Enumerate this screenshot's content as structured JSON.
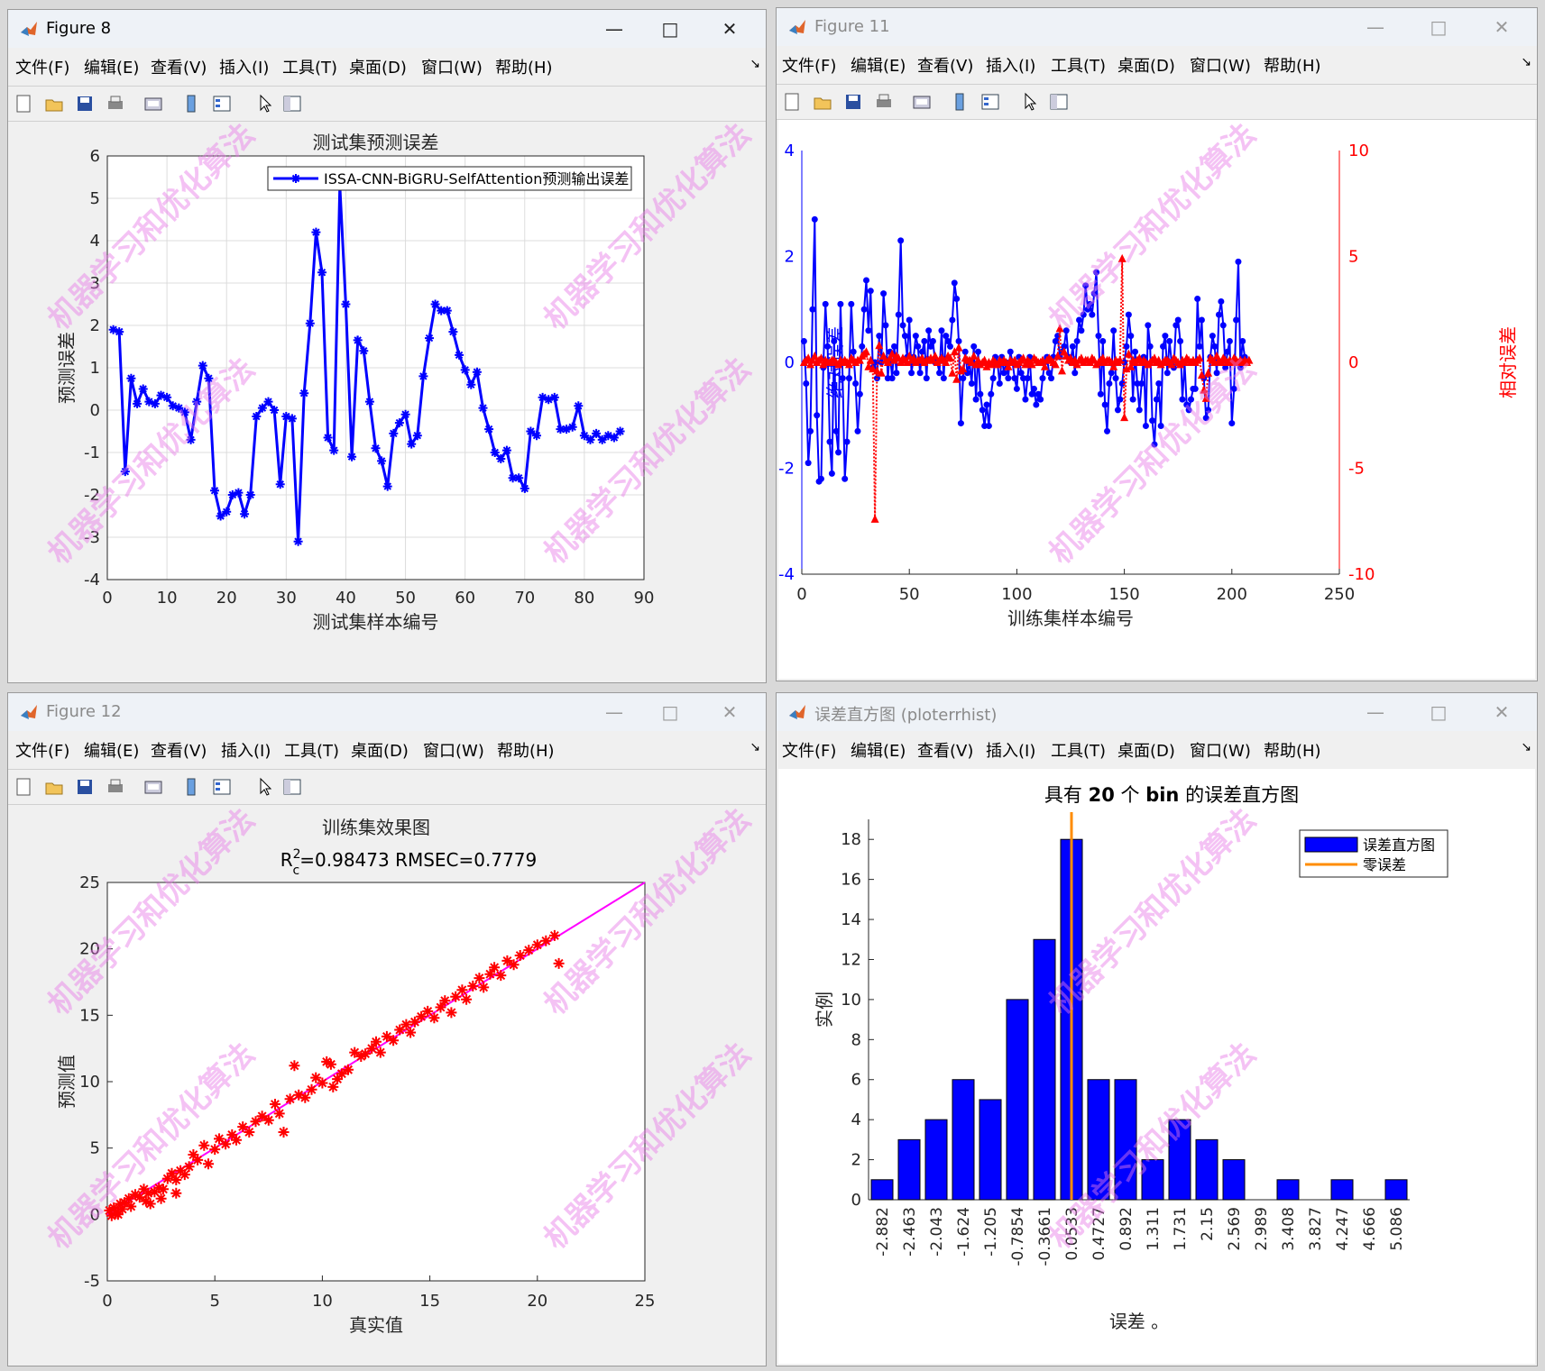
{
  "menus": [
    "文件(F)",
    "编辑(E)",
    "查看(V)",
    "插入(I)",
    "工具(T)",
    "桌面(D)",
    "窗口(W)",
    "帮助(H)"
  ],
  "watermark": "机器学习和优化算法",
  "windows": {
    "fig8": {
      "title": "Figure 8",
      "plot_title": "测试集预测误差",
      "xlabel": "测试集样本编号",
      "ylabel": "预测误差",
      "legend": "ISSA-CNN-BiGRU-SelfAttention预测输出误差",
      "xticks": [
        "0",
        "10",
        "20",
        "30",
        "40",
        "50",
        "60",
        "70",
        "80",
        "90"
      ],
      "yticks": [
        "-4",
        "-3",
        "-2",
        "-1",
        "0",
        "1",
        "2",
        "3",
        "4",
        "5",
        "6"
      ]
    },
    "fig11": {
      "title": "Figure 11",
      "xlabel": "训练集样本编号",
      "ylabel_left": "绝对误差",
      "ylabel_right": "相对误差",
      "xticks": [
        "0",
        "50",
        "100",
        "150",
        "200",
        "250"
      ],
      "yticks_left": [
        "-4",
        "-2",
        "0",
        "2",
        "4"
      ],
      "yticks_right": [
        "-10",
        "-5",
        "0",
        "5",
        "10"
      ]
    },
    "fig12": {
      "title": "Figure 12",
      "plot_title": "训练集效果图",
      "subtitle_r": "R",
      "subtitle_sup": "2",
      "subtitle_sub": "c",
      "subtitle_rest": "=0.98473  RMSEC=0.7779",
      "xlabel": "真实值",
      "ylabel": "预测值",
      "xticks": [
        "0",
        "5",
        "10",
        "15",
        "20",
        "25"
      ],
      "yticks": [
        "-5",
        "0",
        "5",
        "10",
        "15",
        "20",
        "25"
      ]
    },
    "hist": {
      "title": "误差直方图 (ploterrhist)",
      "plot_title_a": "具有 ",
      "plot_title_b": "20",
      "plot_title_c": " 个 ",
      "plot_title_d": "bin",
      "plot_title_e": " 的误差直方图",
      "xlabel": "误差 。",
      "ylabel": "实例",
      "legend_hist": "误差直方图",
      "legend_zero": "零误差",
      "yticks": [
        "0",
        "2",
        "4",
        "6",
        "8",
        "10",
        "12",
        "14",
        "16",
        "18"
      ]
    }
  },
  "chart_data": [
    {
      "type": "line",
      "title": "测试集预测误差",
      "xlabel": "测试集样本编号",
      "ylabel": "预测误差",
      "xlim": [
        0,
        90
      ],
      "ylim": [
        -4,
        6
      ],
      "grid": true,
      "legend_position": "top-right",
      "series": [
        {
          "name": "ISSA-CNN-BiGRU-SelfAttention预测输出误差",
          "color": "#0000ff",
          "x": [
            1,
            2,
            3,
            4,
            5,
            6,
            7,
            8,
            9,
            10,
            11,
            12,
            13,
            14,
            15,
            16,
            17,
            18,
            19,
            20,
            21,
            22,
            23,
            24,
            25,
            26,
            27,
            28,
            29,
            30,
            31,
            32,
            33,
            34,
            35,
            36,
            37,
            38,
            39,
            40,
            41,
            42,
            43,
            44,
            45,
            46,
            47,
            48,
            49,
            50,
            51,
            52,
            53,
            54,
            55,
            56,
            57,
            58,
            59,
            60,
            61,
            62,
            63,
            64,
            65,
            66,
            67,
            68,
            69,
            70,
            71,
            72,
            73,
            74,
            75,
            76,
            77,
            78,
            79,
            80,
            81,
            82,
            83,
            84,
            85,
            86
          ],
          "y": [
            1.9,
            1.85,
            -1.45,
            0.75,
            0.15,
            0.5,
            0.2,
            0.15,
            0.35,
            0.3,
            0.1,
            0.05,
            -0.05,
            -0.7,
            0.2,
            1.05,
            0.75,
            -1.9,
            -2.5,
            -2.4,
            -2.0,
            -1.95,
            -2.45,
            -2.0,
            -0.15,
            0.05,
            0.2,
            0.0,
            -1.75,
            -0.15,
            -0.2,
            -3.1,
            0.4,
            2.05,
            4.2,
            3.25,
            -0.65,
            -0.95,
            5.3,
            2.5,
            -1.1,
            1.65,
            1.4,
            0.2,
            -0.9,
            -1.2,
            -1.8,
            -0.55,
            -0.3,
            -0.1,
            -0.8,
            -0.6,
            0.8,
            1.7,
            2.5,
            2.35,
            2.35,
            1.85,
            1.3,
            0.95,
            0.6,
            0.9,
            0.05,
            -0.45,
            -1.0,
            -1.15,
            -0.95,
            -1.6,
            -1.6,
            -1.85,
            -0.5,
            -0.6,
            0.3,
            0.25,
            0.3,
            -0.45,
            -0.45,
            -0.4,
            0.1,
            -0.6,
            -0.7,
            -0.55,
            -0.7,
            -0.6,
            -0.65,
            -0.5
          ]
        }
      ]
    },
    {
      "type": "line",
      "xlabel": "训练集样本编号",
      "ylabel_left": "绝对误差",
      "ylabel_right": "相对误差",
      "xlim": [
        0,
        250
      ],
      "ylim_left": [
        -4,
        4
      ],
      "ylim_right": [
        -10,
        10
      ],
      "series": [
        {
          "name": "绝对误差",
          "color": "#0000ff",
          "y": [
            0.4,
            -0.4,
            -1.9,
            -1.3,
            1.0,
            2.7,
            -1.0,
            -2.25,
            -2.2,
            -0.1,
            1.1,
            0.3,
            -1.5,
            -2.1,
            0.4,
            -1.3,
            -1.7,
            1.1,
            -0.3,
            -2.2,
            -1.5,
            -0.3,
            1.1,
            0.2,
            -0.4,
            -1.3,
            -0.6,
            0.3,
            1.0,
            1.55,
            0.6,
            1.35,
            -0.1,
            0.0,
            -0.3,
            0.5,
            0.0,
            1.3,
            0.7,
            -0.3,
            0.2,
            -0.3,
            0.3,
            -0.2,
            0.9,
            2.3,
            0.7,
            0.5,
            0.1,
            0.8,
            -0.2,
            0.1,
            0.5,
            0.3,
            -0.2,
            0.2,
            0.4,
            -0.3,
            0.6,
            0.3,
            0.4,
            0.0,
            0.0,
            -0.2,
            0.6,
            -0.3,
            0.5,
            0.4,
            0.3,
            0.8,
            1.5,
            1.2,
            0.4,
            -1.15,
            -0.3,
            0.2,
            -0.2,
            0.0,
            -0.4,
            0.3,
            -0.7,
            0.2,
            -0.6,
            -0.9,
            -1.2,
            -0.8,
            -1.2,
            -0.6,
            -0.3,
            0.1,
            0.0,
            -0.4,
            0.1,
            -0.2,
            0.0,
            -0.3,
            0.2,
            0.0,
            -0.3,
            -0.5,
            0.1,
            -0.2,
            -0.3,
            -0.7,
            -0.3,
            0.1,
            -0.6,
            -0.5,
            -0.8,
            -0.6,
            -0.7,
            -0.3,
            0.0,
            0.1,
            -0.2,
            -0.3,
            0.1,
            0.4,
            0.5,
            0.1,
            0.2,
            0.3,
            0.6,
            0.1,
            0.0,
            0.3,
            -0.2,
            0.4,
            0.8,
            0.6,
            0.9,
            1.45,
            1.0,
            1.1,
            0.9,
            1.3,
            1.7,
            0.5,
            -0.6,
            0.4,
            -0.8,
            -1.3,
            -0.4,
            -0.2,
            0.6,
            -0.3,
            -0.9,
            -0.7,
            -0.4,
            0.0,
            0.3,
            0.9,
            0.5,
            -0.7,
            0.2,
            -0.4,
            -0.9,
            -0.4,
            0.1,
            -1.2,
            0.7,
            0.3,
            -1.1,
            -1.55,
            -0.7,
            -0.4,
            -1.2,
            0.3,
            0.5,
            -0.2,
            0.4,
            0.0,
            -0.1,
            0.7,
            0.8,
            0.4,
            -0.7,
            0.0,
            -0.8,
            -0.9,
            -0.7,
            -0.5,
            -0.5,
            1.2,
            0.3,
            0.8,
            -0.3,
            -1.05,
            -0.9,
            0.1,
            0.5,
            0.3,
            -0.2,
            0.9,
            1.15,
            0.7,
            -0.1,
            0.2,
            0.4,
            -1.15,
            -0.5,
            0.8,
            1.9,
            -0.1,
            0.4,
            0.1
          ]
        },
        {
          "name": "相对误差",
          "color": "#ff0000",
          "y": [
            0.0,
            0.1,
            0.2,
            -0.1,
            0.1,
            0.3,
            0.0,
            0.1,
            0.2,
            -0.1,
            0.1,
            0.0,
            0.0,
            0.1,
            0.1,
            0.0,
            -0.1,
            0.1,
            0.0,
            0.1,
            0.0,
            -0.1,
            0.2,
            0.1,
            0.0,
            0.1,
            0.1,
            0.3,
            0.4,
            0.5,
            -0.2,
            0.1,
            -0.3,
            -7.4,
            -0.4,
            0.8,
            -0.5,
            0.3,
            0.1,
            0.0,
            0.2,
            0.4,
            0.1,
            0.3,
            0.2,
            0.0,
            0.2,
            0.1,
            0.0,
            0.3,
            0.1,
            0.2,
            0.0,
            0.1,
            0.1,
            0.2,
            0.0,
            0.1,
            0.1,
            0.2,
            0.1,
            0.3,
            0.0,
            0.1,
            0.2,
            0.1,
            0.0,
            0.3,
            0.2,
            -0.5,
            0.5,
            -0.8,
            0.7,
            -0.4,
            -0.3,
            0.2,
            0.1,
            0.1,
            0.0,
            0.3,
            -0.1,
            0.1,
            -0.1,
            0.0,
            0.1,
            -0.2,
            0.0,
            -0.1,
            0.1,
            0.0,
            -0.1,
            0.1,
            0.0,
            0.1,
            0.0,
            -0.2,
            0.1,
            0.0,
            0.1,
            -0.1,
            0.0,
            0.1,
            0.2,
            -0.1,
            0.1,
            0.0,
            -0.1,
            0.2,
            0.1,
            0.0,
            0.0,
            0.1,
            -0.2,
            0.1,
            0.2,
            0.1,
            0.0,
            -0.1,
            0.3,
            1.6,
            -0.4,
            0.5,
            0.3,
            0.1,
            0.2,
            0.0,
            0.1,
            -0.1,
            0.1,
            0.2,
            0.0,
            0.1,
            0.1,
            0.0,
            0.2,
            0.1,
            -0.1,
            0.0,
            0.1,
            0.2,
            0.0,
            0.1,
            0.1,
            0.0,
            -0.2,
            0.1,
            0.0,
            0.1,
            4.9,
            -2.6,
            -0.3,
            0.4,
            -0.2,
            0.1,
            0.0,
            0.1,
            0.2,
            0.0,
            0.1,
            0.0,
            -0.1,
            0.0,
            0.1,
            0.2,
            0.0,
            0.1,
            -0.1,
            0.0,
            0.1,
            0.1,
            0.0,
            -0.1,
            0.2,
            0.1,
            0.0,
            -0.1,
            0.1,
            0.0,
            0.2,
            0.1,
            0.0,
            0.1,
            0.0,
            0.1,
            0.2,
            -0.6,
            -1.3,
            -1.7,
            -0.5,
            0.2,
            0.1,
            0.0,
            0.3,
            0.1,
            0.0,
            0.2,
            0.1,
            0.0,
            0.1,
            0.0,
            0.2,
            0.1,
            0.0,
            0.1,
            0.0,
            0.1,
            0.0,
            0.1
          ]
        }
      ]
    },
    {
      "type": "scatter",
      "title": "训练集效果图",
      "subtitle": "R2c=0.98473  RMSEC=0.7779",
      "xlabel": "真实值",
      "ylabel": "预测值",
      "xlim": [
        0,
        25
      ],
      "ylim": [
        -5,
        25
      ],
      "fit_line": [
        [
          0,
          0
        ],
        [
          25,
          25
        ]
      ],
      "points": [
        [
          0.1,
          0.3
        ],
        [
          0.2,
          -0.1
        ],
        [
          0.3,
          0.5
        ],
        [
          0.4,
          0.1
        ],
        [
          0.5,
          0.0
        ],
        [
          0.6,
          0.8
        ],
        [
          0.7,
          0.4
        ],
        [
          0.8,
          0.9
        ],
        [
          1.0,
          1.2
        ],
        [
          1.1,
          0.6
        ],
        [
          1.3,
          1.5
        ],
        [
          1.5,
          1.3
        ],
        [
          1.7,
          1.9
        ],
        [
          1.9,
          1.6
        ],
        [
          2.0,
          0.8
        ],
        [
          2.2,
          1.7
        ],
        [
          2.4,
          2.0
        ],
        [
          2.6,
          1.9
        ],
        [
          2.8,
          2.7
        ],
        [
          3.0,
          3.1
        ],
        [
          3.2,
          2.6
        ],
        [
          3.4,
          3.3
        ],
        [
          3.6,
          3.0
        ],
        [
          3.8,
          3.6
        ],
        [
          3.2,
          1.6
        ],
        [
          2.5,
          1.2
        ],
        [
          1.8,
          1.0
        ],
        [
          4.0,
          4.5
        ],
        [
          4.2,
          4.1
        ],
        [
          4.5,
          5.2
        ],
        [
          4.7,
          3.8
        ],
        [
          5.0,
          4.9
        ],
        [
          5.2,
          5.7
        ],
        [
          5.5,
          5.3
        ],
        [
          5.8,
          6.0
        ],
        [
          6.0,
          5.6
        ],
        [
          6.3,
          6.6
        ],
        [
          6.6,
          6.2
        ],
        [
          6.9,
          7.0
        ],
        [
          7.2,
          7.4
        ],
        [
          7.5,
          7.1
        ],
        [
          7.8,
          8.3
        ],
        [
          8.0,
          7.6
        ],
        [
          8.2,
          6.2
        ],
        [
          8.5,
          8.7
        ],
        [
          8.7,
          11.2
        ],
        [
          8.9,
          9.0
        ],
        [
          9.2,
          8.8
        ],
        [
          9.5,
          9.4
        ],
        [
          9.7,
          10.3
        ],
        [
          10.0,
          9.9
        ],
        [
          10.2,
          11.5
        ],
        [
          10.4,
          11.3
        ],
        [
          10.5,
          9.6
        ],
        [
          10.7,
          10.2
        ],
        [
          10.9,
          10.6
        ],
        [
          11.2,
          10.9
        ],
        [
          11.5,
          12.2
        ],
        [
          11.8,
          11.9
        ],
        [
          12.0,
          12.1
        ],
        [
          12.3,
          12.5
        ],
        [
          12.5,
          13.0
        ],
        [
          12.7,
          12.2
        ],
        [
          13.0,
          13.4
        ],
        [
          13.3,
          13.1
        ],
        [
          13.6,
          13.9
        ],
        [
          13.9,
          14.3
        ],
        [
          14.1,
          13.7
        ],
        [
          14.3,
          14.5
        ],
        [
          14.6,
          14.9
        ],
        [
          14.9,
          15.3
        ],
        [
          15.2,
          14.8
        ],
        [
          15.5,
          15.6
        ],
        [
          15.7,
          16.1
        ],
        [
          16.0,
          15.2
        ],
        [
          16.2,
          16.4
        ],
        [
          16.5,
          16.9
        ],
        [
          16.7,
          16.2
        ],
        [
          17.0,
          17.2
        ],
        [
          17.3,
          17.8
        ],
        [
          17.5,
          17.1
        ],
        [
          17.8,
          18.1
        ],
        [
          18.0,
          18.6
        ],
        [
          18.3,
          18.0
        ],
        [
          18.6,
          19.1
        ],
        [
          18.9,
          18.8
        ],
        [
          19.2,
          19.5
        ],
        [
          19.6,
          19.9
        ],
        [
          20.0,
          20.3
        ],
        [
          20.4,
          20.6
        ],
        [
          20.8,
          21.0
        ],
        [
          21.0,
          18.9
        ]
      ]
    },
    {
      "type": "bar",
      "title": "具有 20 个 bin 的误差直方图",
      "xlabel": "误差 。",
      "ylabel": "实例",
      "ylim": [
        0,
        19
      ],
      "categories": [
        "-2.882",
        "-2.463",
        "-2.043",
        "-1.624",
        "-1.205",
        "-0.7854",
        "-0.3661",
        "0.0533",
        "0.4727",
        "0.892",
        "1.311",
        "1.731",
        "2.15",
        "2.569",
        "2.989",
        "3.408",
        "3.827",
        "4.247",
        "4.666",
        "5.086"
      ],
      "values": [
        1,
        3,
        4,
        6,
        5,
        10,
        13,
        18,
        6,
        6,
        2,
        4,
        3,
        2,
        0,
        1,
        0,
        1,
        0,
        1
      ],
      "zero_error_bin": 7,
      "legend": [
        "误差直方图",
        "零误差"
      ],
      "colors": {
        "bars": "#0000ff",
        "zero_line": "#ff8c00"
      }
    }
  ]
}
